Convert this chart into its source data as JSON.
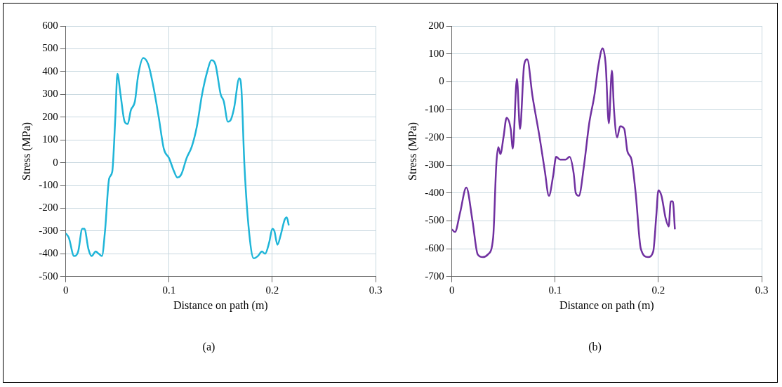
{
  "chart_data": [
    {
      "type": "line",
      "xlabel": "Distance on path (m)",
      "ylabel": "Stress (MPa)",
      "annotations": [
        "(a)"
      ],
      "xlim": [
        0,
        0.3
      ],
      "xticks": [
        0,
        0.1,
        0.2,
        0.3
      ],
      "ylim": [
        -500,
        600
      ],
      "yticks": [
        -500,
        -400,
        -300,
        -200,
        -100,
        0,
        100,
        200,
        300,
        400,
        500,
        600
      ],
      "grid": true,
      "legend": false,
      "marker": "none",
      "line_style": "solid",
      "series": [
        {
          "color": "#1fb5d8",
          "x": [
            0,
            0.003,
            0.008,
            0.012,
            0.016,
            0.018,
            0.022,
            0.025,
            0.029,
            0.032,
            0.035,
            0.038,
            0.042,
            0.045,
            0.048,
            0.05,
            0.053,
            0.057,
            0.06,
            0.063,
            0.067,
            0.07,
            0.075,
            0.08,
            0.085,
            0.09,
            0.095,
            0.1,
            0.105,
            0.108,
            0.112,
            0.117,
            0.122,
            0.127,
            0.132,
            0.137,
            0.141,
            0.145,
            0.15,
            0.153,
            0.157,
            0.16,
            0.163,
            0.168,
            0.17,
            0.173,
            0.177,
            0.182,
            0.186,
            0.19,
            0.193,
            0.197,
            0.2,
            0.202,
            0.205,
            0.208,
            0.212,
            0.214,
            0.216
          ],
          "values": [
            -310,
            -330,
            -410,
            -390,
            -290,
            -290,
            -380,
            -410,
            -390,
            -400,
            -410,
            -300,
            -70,
            -40,
            200,
            390,
            300,
            180,
            170,
            230,
            270,
            380,
            460,
            430,
            330,
            200,
            60,
            20,
            -40,
            -65,
            -50,
            20,
            70,
            160,
            300,
            400,
            450,
            430,
            300,
            270,
            180,
            190,
            240,
            370,
            330,
            -10,
            -280,
            -420,
            -410,
            -390,
            -400,
            -350,
            -290,
            -300,
            -360,
            -320,
            -250,
            -240,
            -275
          ]
        }
      ]
    },
    {
      "type": "line",
      "xlabel": "Distance on path (m)",
      "ylabel": "Stress (MPa)",
      "annotations": [
        "(b)"
      ],
      "xlim": [
        0,
        0.3
      ],
      "xticks": [
        0,
        0.1,
        0.2,
        0.3
      ],
      "ylim": [
        -700,
        200
      ],
      "yticks": [
        -700,
        -600,
        -500,
        -400,
        -300,
        -200,
        -100,
        0,
        100,
        200
      ],
      "grid": true,
      "legend": false,
      "marker": "none",
      "line_style": "solid",
      "series": [
        {
          "color": "#7030a0",
          "x": [
            0,
            0.003,
            0.008,
            0.014,
            0.02,
            0.025,
            0.03,
            0.035,
            0.04,
            0.043,
            0.045,
            0.047,
            0.05,
            0.053,
            0.057,
            0.059,
            0.063,
            0.066,
            0.07,
            0.073,
            0.078,
            0.085,
            0.09,
            0.094,
            0.098,
            0.101,
            0.105,
            0.11,
            0.114,
            0.118,
            0.12,
            0.123,
            0.128,
            0.133,
            0.138,
            0.142,
            0.146,
            0.149,
            0.152,
            0.155,
            0.157,
            0.16,
            0.163,
            0.167,
            0.17,
            0.174,
            0.178,
            0.183,
            0.19,
            0.195,
            0.198,
            0.2,
            0.203,
            0.207,
            0.21,
            0.212,
            0.214,
            0.216
          ],
          "values": [
            -530,
            -540,
            -470,
            -380,
            -500,
            -620,
            -630,
            -620,
            -560,
            -300,
            -235,
            -260,
            -200,
            -130,
            -170,
            -240,
            10,
            -170,
            60,
            80,
            -50,
            -200,
            -320,
            -410,
            -340,
            -270,
            -280,
            -280,
            -270,
            -330,
            -400,
            -410,
            -300,
            -150,
            -50,
            60,
            120,
            60,
            -150,
            40,
            -100,
            -200,
            -160,
            -170,
            -250,
            -280,
            -400,
            -600,
            -630,
            -610,
            -480,
            -390,
            -410,
            -490,
            -520,
            -430,
            -430,
            -530
          ]
        }
      ]
    }
  ]
}
